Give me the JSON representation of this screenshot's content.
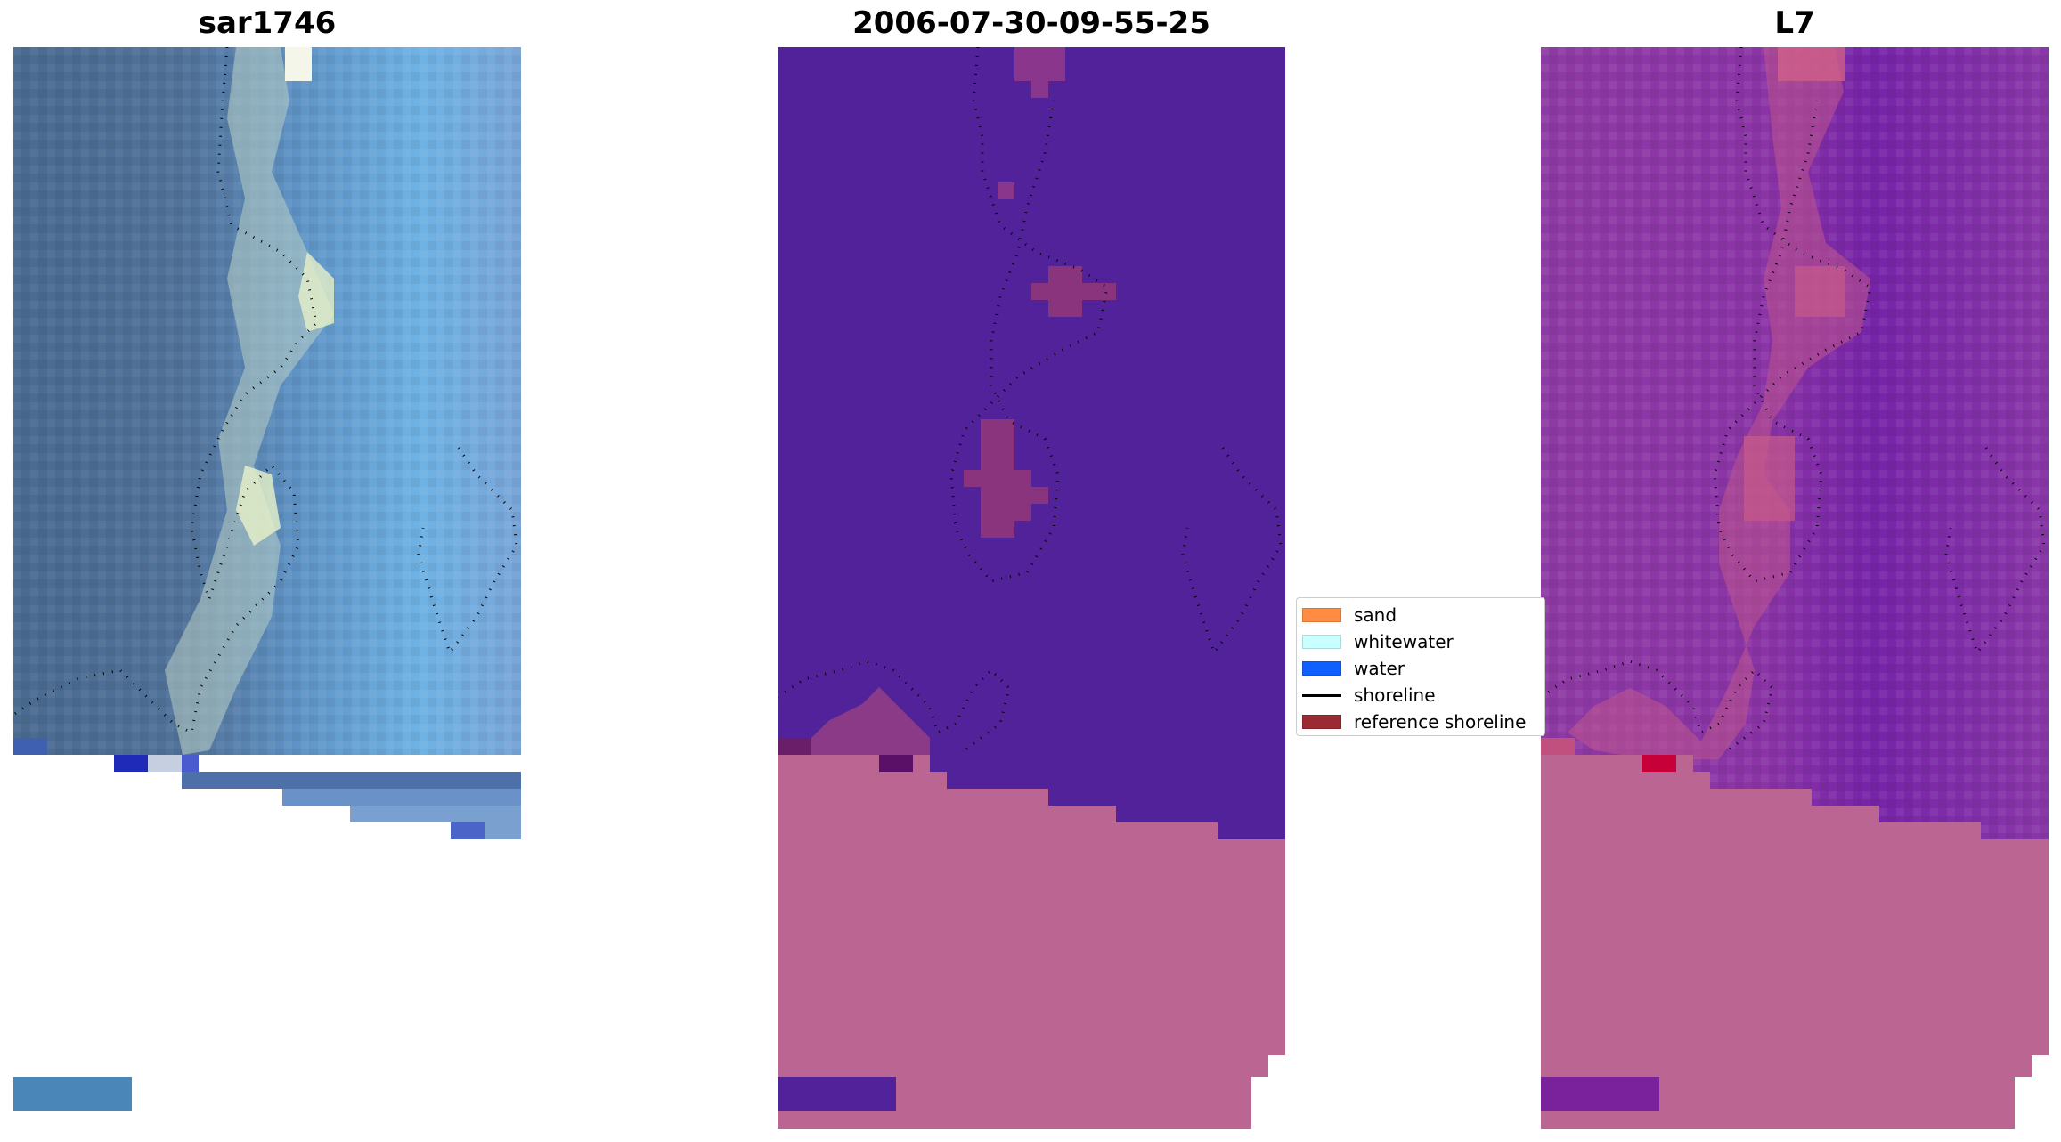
{
  "titles": [
    "sar1746",
    "2006-07-30-09-55-25",
    "L7"
  ],
  "legend": {
    "items": [
      {
        "label": "sand",
        "type": "patch",
        "color": "#ff8c42"
      },
      {
        "label": "whitewater",
        "type": "patch",
        "color": "#c8ffff"
      },
      {
        "label": "water",
        "type": "patch",
        "color": "#1060ff"
      },
      {
        "label": "shoreline",
        "type": "line",
        "color": "#000000"
      },
      {
        "label": "reference shoreline",
        "type": "patch",
        "color": "#9a2b33"
      }
    ]
  },
  "colors": {
    "rgb_land": "#4e6f96",
    "rgb_water": "#6aa8dc",
    "rgb_sand": "#d8e2c8",
    "class_water": "#52229a",
    "class_nodata": "#bb6593",
    "class_sand": "#8a3a86",
    "mndwi_base": "#8f3aa6",
    "mndwi_sand": "#c55a8e",
    "mndwi_nodata": "#bb6593"
  }
}
